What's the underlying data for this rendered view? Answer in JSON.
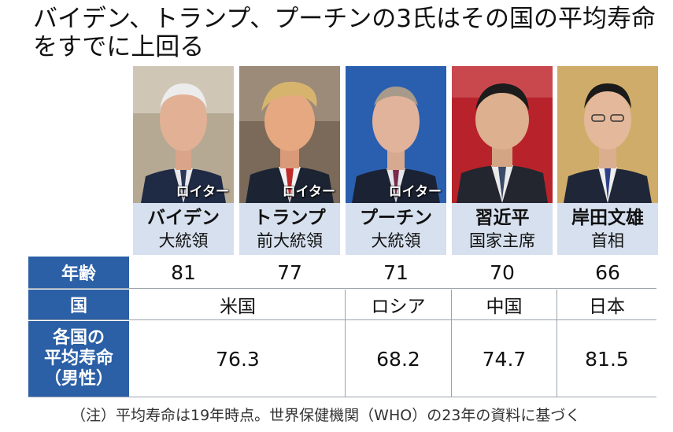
{
  "title": {
    "line1": "バイデン、トランプ、プーチンの3氏はその国の平均寿命",
    "line2": "をすでに上回る"
  },
  "photo_credit": "ロイター",
  "leaders": [
    {
      "name": "バイデン",
      "title": "大統領",
      "age": "81",
      "credit": "ロイター"
    },
    {
      "name": "トランプ",
      "title": "前大統領",
      "age": "77",
      "credit": "ロイター"
    },
    {
      "name": "プーチン",
      "title": "大統領",
      "age": "71",
      "credit": "ロイター"
    },
    {
      "name": "習近平",
      "title": "国家主席",
      "age": "70",
      "credit": ""
    },
    {
      "name": "岸田文雄",
      "title": "首相",
      "age": "66",
      "credit": ""
    }
  ],
  "row_labels": {
    "age": "年齢",
    "country": "国",
    "life_line1": "各国の",
    "life_line2": "平均寿命",
    "life_line3": "（男性）"
  },
  "countries": [
    "米国",
    "ロシア",
    "中国",
    "日本"
  ],
  "life_expectancy": [
    "76.3",
    "68.2",
    "74.7",
    "81.5"
  ],
  "note": "（注）平均寿命は19年時点。世界保健機関（WHO）の23年の資料に基づく",
  "colors": {
    "header_blue": "#2b5fa6",
    "name_bg": "#d6e0ee"
  },
  "icons": [
    "portrait-biden",
    "portrait-trump",
    "portrait-putin",
    "portrait-xi",
    "portrait-kishida"
  ]
}
